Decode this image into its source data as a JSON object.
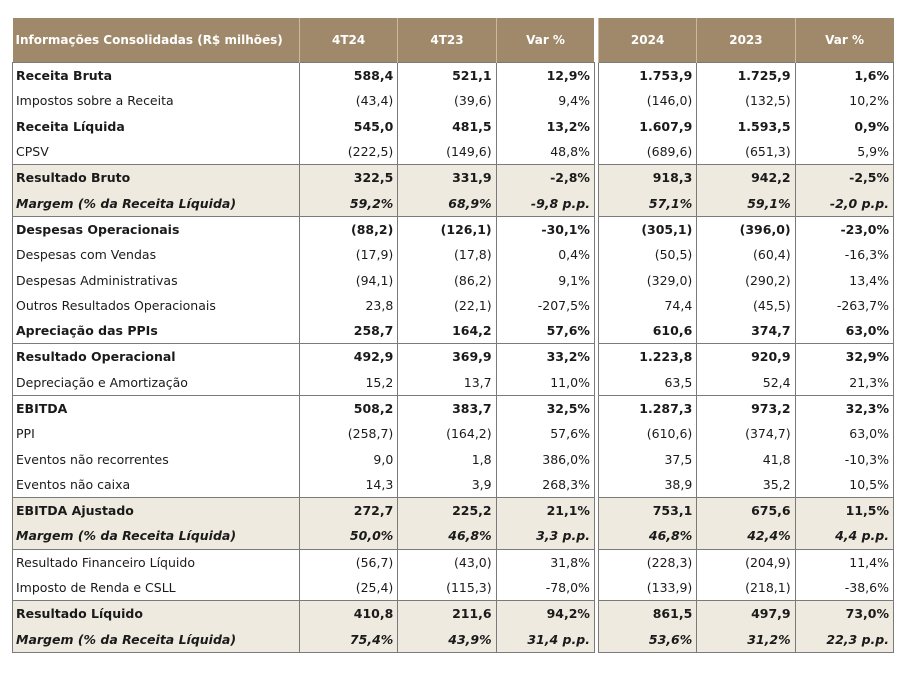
{
  "table": {
    "headers": [
      "Informações Consolidadas (R$ milhões)",
      "4T24",
      "4T23",
      "Var %",
      "2024",
      "2023",
      "Var %"
    ],
    "rows": [
      {
        "label": "Receita Bruta",
        "values": [
          "588,4",
          "521,1",
          "12,9%",
          "1.753,9",
          "1.725,9",
          "1,6%"
        ],
        "style": "bold"
      },
      {
        "label": "Impostos sobre a Receita",
        "values": [
          "(43,4)",
          "(39,6)",
          "9,4%",
          "(146,0)",
          "(132,5)",
          "10,2%"
        ],
        "style": "normal"
      },
      {
        "label": "Receita Líquida",
        "values": [
          "545,0",
          "481,5",
          "13,2%",
          "1.607,9",
          "1.593,5",
          "0,9%"
        ],
        "style": "bold"
      },
      {
        "label": "CPSV",
        "values": [
          "(222,5)",
          "(149,6)",
          "48,8%",
          "(689,6)",
          "(651,3)",
          "5,9%"
        ],
        "style": "normal"
      },
      {
        "label": "Resultado Bruto",
        "values": [
          "322,5",
          "331,9",
          "-2,8%",
          "918,3",
          "942,2",
          "-2,5%"
        ],
        "style": "bold",
        "shade": true,
        "topline": true
      },
      {
        "label": "Margem (% da Receita Líquida)",
        "values": [
          "59,2%",
          "68,9%",
          "-9,8 p.p.",
          "57,1%",
          "59,1%",
          "-2,0 p.p."
        ],
        "style": "italic",
        "shade": true
      },
      {
        "label": "Despesas Operacionais",
        "values": [
          "(88,2)",
          "(126,1)",
          "-30,1%",
          "(305,1)",
          "(396,0)",
          "-23,0%"
        ],
        "style": "bold",
        "topline": true
      },
      {
        "label": "Despesas com Vendas",
        "values": [
          "(17,9)",
          "(17,8)",
          "0,4%",
          "(50,5)",
          "(60,4)",
          "-16,3%"
        ],
        "style": "normal"
      },
      {
        "label": "Despesas Administrativas",
        "values": [
          "(94,1)",
          "(86,2)",
          "9,1%",
          "(329,0)",
          "(290,2)",
          "13,4%"
        ],
        "style": "normal"
      },
      {
        "label": "Outros Resultados Operacionais",
        "values": [
          "23,8",
          "(22,1)",
          "-207,5%",
          "74,4",
          "(45,5)",
          "-263,7%"
        ],
        "style": "normal"
      },
      {
        "label": "Apreciação das PPIs",
        "values": [
          "258,7",
          "164,2",
          "57,6%",
          "610,6",
          "374,7",
          "63,0%"
        ],
        "style": "bold"
      },
      {
        "label": "Resultado Operacional",
        "values": [
          "492,9",
          "369,9",
          "33,2%",
          "1.223,8",
          "920,9",
          "32,9%"
        ],
        "style": "bold",
        "topline": true
      },
      {
        "label": "Depreciação e Amortização",
        "values": [
          "15,2",
          "13,7",
          "11,0%",
          "63,5",
          "52,4",
          "21,3%"
        ],
        "style": "normal"
      },
      {
        "label": "EBITDA",
        "values": [
          "508,2",
          "383,7",
          "32,5%",
          "1.287,3",
          "973,2",
          "32,3%"
        ],
        "style": "bold",
        "topline": true
      },
      {
        "label": "PPI",
        "values": [
          "(258,7)",
          "(164,2)",
          "57,6%",
          "(610,6)",
          "(374,7)",
          "63,0%"
        ],
        "style": "normal"
      },
      {
        "label": "Eventos não recorrentes",
        "values": [
          "9,0",
          "1,8",
          "386,0%",
          "37,5",
          "41,8",
          "-10,3%"
        ],
        "style": "normal"
      },
      {
        "label": "Eventos não caixa",
        "values": [
          "14,3",
          "3,9",
          "268,3%",
          "38,9",
          "35,2",
          "10,5%"
        ],
        "style": "normal"
      },
      {
        "label": "EBITDA Ajustado",
        "values": [
          "272,7",
          "225,2",
          "21,1%",
          "753,1",
          "675,6",
          "11,5%"
        ],
        "style": "bold",
        "shade": true,
        "topline": true
      },
      {
        "label": "Margem (% da Receita Líquida)",
        "values": [
          "50,0%",
          "46,8%",
          "3,3 p.p.",
          "46,8%",
          "42,4%",
          "4,4 p.p."
        ],
        "style": "italic",
        "shade": true
      },
      {
        "label": "Resultado Financeiro Líquido",
        "values": [
          "(56,7)",
          "(43,0)",
          "31,8%",
          "(228,3)",
          "(204,9)",
          "11,4%"
        ],
        "style": "normal",
        "topline": true
      },
      {
        "label": "Imposto de Renda e CSLL",
        "values": [
          "(25,4)",
          "(115,3)",
          "-78,0%",
          "(133,9)",
          "(218,1)",
          "-38,6%"
        ],
        "style": "normal"
      },
      {
        "label": "Resultado Líquido",
        "values": [
          "410,8",
          "211,6",
          "94,2%",
          "861,5",
          "497,9",
          "73,0%"
        ],
        "style": "bold",
        "shade": true,
        "topline": true
      },
      {
        "label": "Margem (% da Receita Líquida)",
        "values": [
          "75,4%",
          "43,9%",
          "31,4 p.p.",
          "53,6%",
          "31,2%",
          "22,3 p.p."
        ],
        "style": "italic",
        "shade": true
      }
    ]
  },
  "colors": {
    "header_bg": "#a0896a",
    "shade_bg": "#eeeadf",
    "border": "#7a7a7a"
  }
}
